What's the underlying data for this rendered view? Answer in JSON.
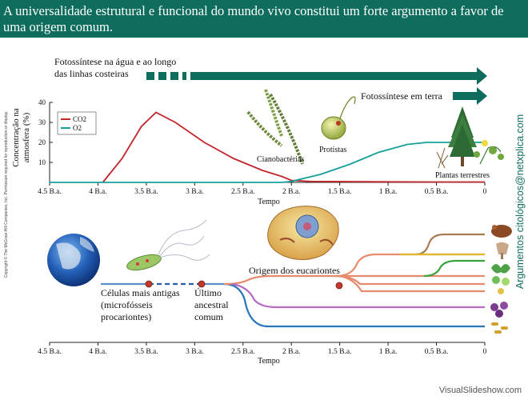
{
  "banner": {
    "title": "A universalidade estrutural e funcional do mundo vivo constitui um forte argumento a favor de uma origem comum."
  },
  "copyright": "Copyright © The McGraw-Hill Companies, Inc. Permission required for reproduction or display.",
  "watermark": "Argumentos citológicos@netxplica.com",
  "footer": "VisualSlideshow.com",
  "colors": {
    "banner": "#0f6d5e",
    "co2": "#c0272d",
    "o2": "#17a09a",
    "arrow": "#0f6d5e"
  },
  "top_panel": {
    "photosynthesis_water_line1": "Fotossíntese na água e ao longo",
    "photosynthesis_water_line2": "das linhas costeiras",
    "photosynthesis_land": "Fotossíntese em terra",
    "cyanobacteria": "Cianobactérias",
    "protists": "Protistas",
    "land_plants": "Plantas terrestres",
    "x_axis_label": "Tempo"
  },
  "bottom_panel": {
    "first_cells_line1": "Células mais antigas",
    "first_cells_line2": "(microfósseis",
    "first_cells_line3": "procariontes)",
    "luca_line1": "Último",
    "luca_line2": "ancestral",
    "luca_line3": "comum",
    "eukaryotes_origin": "Origem dos eucariontes",
    "x_axis_label": "Tempo"
  },
  "chart_data": {
    "type": "line",
    "title": "",
    "xlabel": "Tempo",
    "ylabel": "Concentração na atmosfera (%)",
    "x_ticks": [
      "4.5 B.a.",
      "4 B.a.",
      "3.5 B.a.",
      "3 B.a.",
      "2.5 B.a.",
      "2 B.a.",
      "1.5 B.a.",
      "1 B.a.",
      "0.5 B.a.",
      "0"
    ],
    "x_tick_values": [
      4.5,
      4,
      3.5,
      3,
      2.5,
      2,
      1.5,
      1,
      0.5,
      0
    ],
    "y_ticks": [
      10,
      20,
      30,
      40
    ],
    "xlim": [
      4.5,
      0
    ],
    "ylim": [
      0,
      40
    ],
    "legend": [
      "CO2",
      "O2"
    ],
    "series": [
      {
        "name": "CO2",
        "x": [
          3.95,
          3.75,
          3.55,
          3.4,
          3.2,
          2.9,
          2.6,
          2.3,
          2.1,
          2.0,
          1.8,
          1.0,
          0.5,
          0.0
        ],
        "y": [
          0,
          12,
          28,
          35,
          30,
          20,
          12,
          6,
          3,
          1,
          0.5,
          0.3,
          0.2,
          0.2
        ]
      },
      {
        "name": "O2",
        "x": [
          4.5,
          2.1,
          2.0,
          1.7,
          1.4,
          1.1,
          0.8,
          0.6,
          0.4,
          0.0
        ],
        "y": [
          0,
          0,
          0.5,
          4,
          9,
          15,
          19,
          20,
          20,
          20
        ]
      }
    ]
  }
}
